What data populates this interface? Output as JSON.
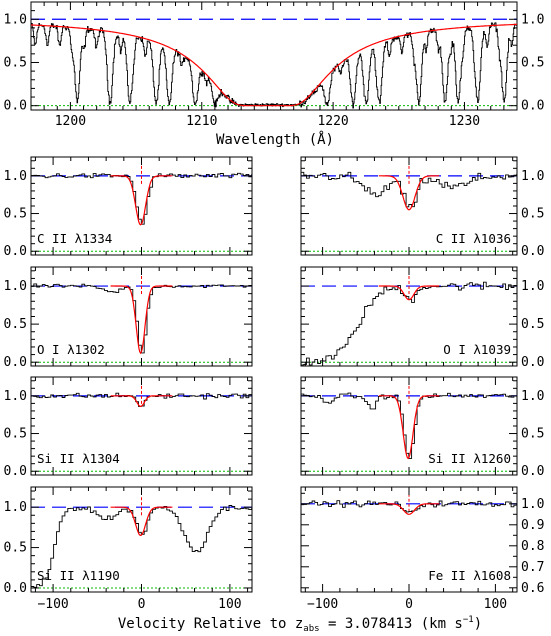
{
  "figure": {
    "top_xlabel": "Wavelength (Å)",
    "bottom_xlabel_pre": "Velocity Relative to z",
    "bottom_xlabel_sub": "abs",
    "bottom_xlabel_post": " = 3.078413 (km s",
    "bottom_xlabel_sup": "−1",
    "bottom_xlabel_end": ")"
  },
  "colors": {
    "data": "#000000",
    "fit": "#ff0000",
    "continuum": "#0000ff",
    "zero": "#00bb00",
    "marker": "#ff0000"
  },
  "chart_data": [
    {
      "id": "lya",
      "type": "line",
      "xlabel": "Wavelength (Å)",
      "ylabel": "",
      "xlim": [
        1197,
        1234
      ],
      "ylim": [
        -0.05,
        1.2
      ],
      "xticks": [
        1200,
        1210,
        1220,
        1230
      ],
      "yticks": [
        0.0,
        0.5,
        1.0
      ],
      "yticks_labels": [
        "0.0",
        "0.5",
        "1.0"
      ],
      "damped_profile": {
        "center": 1215.0,
        "trough_width": [
          1212.5,
          1217.5
        ]
      },
      "absorption_lines": [
        1200.5,
        1203.0,
        1204.5,
        1206.5,
        1207.5,
        1209.5,
        1211.0,
        1219.5,
        1221.5,
        1222.5,
        1223.5,
        1226.5,
        1228.5,
        1229.5,
        1231.0,
        1233.0
      ]
    },
    {
      "id": "c2-1334",
      "type": "line",
      "label": "C II λ1334",
      "side": "left",
      "xlim": [
        -125,
        125
      ],
      "ylim": [
        -0.05,
        1.25
      ],
      "yticks": [
        "0.0",
        "0.5",
        "1.0"
      ],
      "components": [
        {
          "v": -1,
          "depth": 0.65,
          "width": 8
        }
      ],
      "noise": 0.03,
      "fit": true
    },
    {
      "id": "c2-1036",
      "type": "line",
      "label": "C II λ1036",
      "side": "right",
      "xlim": [
        -125,
        125
      ],
      "ylim": [
        -0.05,
        1.25
      ],
      "yticks": [
        "0.0",
        "0.5",
        "1.0"
      ],
      "components": [
        {
          "v": 0,
          "depth": 0.45,
          "width": 10
        },
        {
          "v": -40,
          "depth": 0.25,
          "width": 20
        },
        {
          "v": 50,
          "depth": 0.15,
          "width": 25
        }
      ],
      "noise": 0.06,
      "fit": true
    },
    {
      "id": "o1-1302",
      "type": "line",
      "label": "O I λ1302",
      "side": "left",
      "xlim": [
        -125,
        125
      ],
      "ylim": [
        -0.05,
        1.25
      ],
      "yticks": [
        "0.0",
        "0.5",
        "1.0"
      ],
      "components": [
        {
          "v": -1,
          "depth": 0.88,
          "width": 7
        },
        {
          "v": -35,
          "depth": 0.08,
          "width": 15
        }
      ],
      "noise": 0.02,
      "fit": true
    },
    {
      "id": "o1-1039",
      "type": "line",
      "label": "O I λ1039",
      "side": "right",
      "xlim": [
        -125,
        125
      ],
      "ylim": [
        -0.05,
        1.25
      ],
      "yticks": [
        "0.0",
        "0.5",
        "1.0"
      ],
      "components": [
        {
          "v": 0,
          "depth": 0.18,
          "width": 8
        }
      ],
      "wing": {
        "edge": -60,
        "scale": 35
      },
      "noise": 0.05,
      "fit": true
    },
    {
      "id": "si2-1304",
      "type": "line",
      "label": "Si II λ1304",
      "side": "left",
      "xlim": [
        -125,
        125
      ],
      "ylim": [
        -0.05,
        1.25
      ],
      "yticks": [
        "0.0",
        "0.5",
        "1.0"
      ],
      "components": [
        {
          "v": -1,
          "depth": 0.14,
          "width": 6
        }
      ],
      "noise": 0.03,
      "fit": true
    },
    {
      "id": "si2-1260",
      "type": "line",
      "label": "Si II λ1260",
      "side": "right",
      "xlim": [
        -125,
        125
      ],
      "ylim": [
        -0.05,
        1.25
      ],
      "yticks": [
        "0.0",
        "0.5",
        "1.0"
      ],
      "components": [
        {
          "v": -1,
          "depth": 0.83,
          "width": 8
        },
        {
          "v": -45,
          "depth": 0.18,
          "width": 7
        },
        {
          "v": -95,
          "depth": 0.07,
          "width": 10
        }
      ],
      "noise": 0.03,
      "fit": true
    },
    {
      "id": "si2-1190",
      "type": "line",
      "label": "Si II λ1190",
      "side": "left",
      "xlim": [
        -125,
        125
      ],
      "ylim": [
        -0.05,
        1.25
      ],
      "yticks": [
        "0.0",
        "0.5",
        "1.0"
      ],
      "components": [
        {
          "v": -1,
          "depth": 0.35,
          "width": 8
        },
        {
          "v": 60,
          "depth": 0.55,
          "width": 18
        },
        {
          "v": -40,
          "depth": 0.15,
          "width": 15
        }
      ],
      "wing": {
        "edge": -100,
        "scale": 14
      },
      "noise": 0.03,
      "fit": true
    },
    {
      "id": "fe2-1608",
      "type": "line",
      "label": "Fe II λ1608",
      "side": "right",
      "xlim": [
        -125,
        125
      ],
      "ylim": [
        0.58,
        1.08
      ],
      "yticks": [
        "1.0",
        "0.9",
        "0.8",
        "0.7",
        "0.6"
      ],
      "ytick_values": [
        1.0,
        0.9,
        0.8,
        0.7,
        0.6
      ],
      "components": [
        {
          "v": 0,
          "depth": 0.05,
          "width": 9
        }
      ],
      "noise": 0.012,
      "fit": true
    }
  ],
  "velocity_axis": {
    "xticks": [
      -100,
      0,
      100
    ],
    "xtick_labels": [
      "−100",
      "0",
      "100"
    ]
  }
}
